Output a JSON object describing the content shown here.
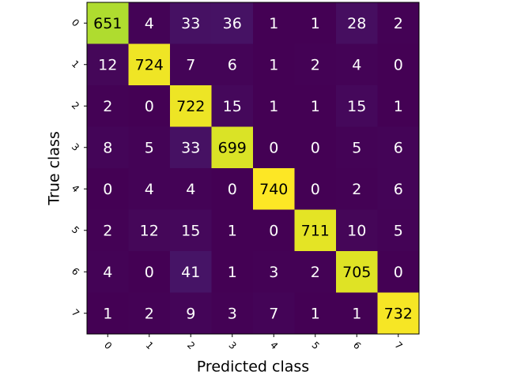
{
  "chart_data": {
    "type": "heatmap",
    "xlabel": "Predicted class",
    "ylabel": "True class",
    "x_categories": [
      "0",
      "1",
      "2",
      "3",
      "4",
      "5",
      "6",
      "7"
    ],
    "y_categories": [
      "0",
      "1",
      "2",
      "3",
      "4",
      "5",
      "6",
      "7"
    ],
    "values": [
      [
        651,
        4,
        33,
        36,
        1,
        1,
        28,
        2
      ],
      [
        12,
        724,
        7,
        6,
        1,
        2,
        4,
        0
      ],
      [
        2,
        0,
        722,
        15,
        1,
        1,
        15,
        1
      ],
      [
        8,
        5,
        33,
        699,
        0,
        0,
        5,
        6
      ],
      [
        0,
        4,
        4,
        0,
        740,
        0,
        2,
        6
      ],
      [
        2,
        12,
        15,
        1,
        0,
        711,
        10,
        5
      ],
      [
        4,
        0,
        41,
        1,
        3,
        2,
        705,
        0
      ],
      [
        1,
        2,
        9,
        3,
        7,
        1,
        1,
        732
      ]
    ],
    "colormap": "viridis"
  }
}
